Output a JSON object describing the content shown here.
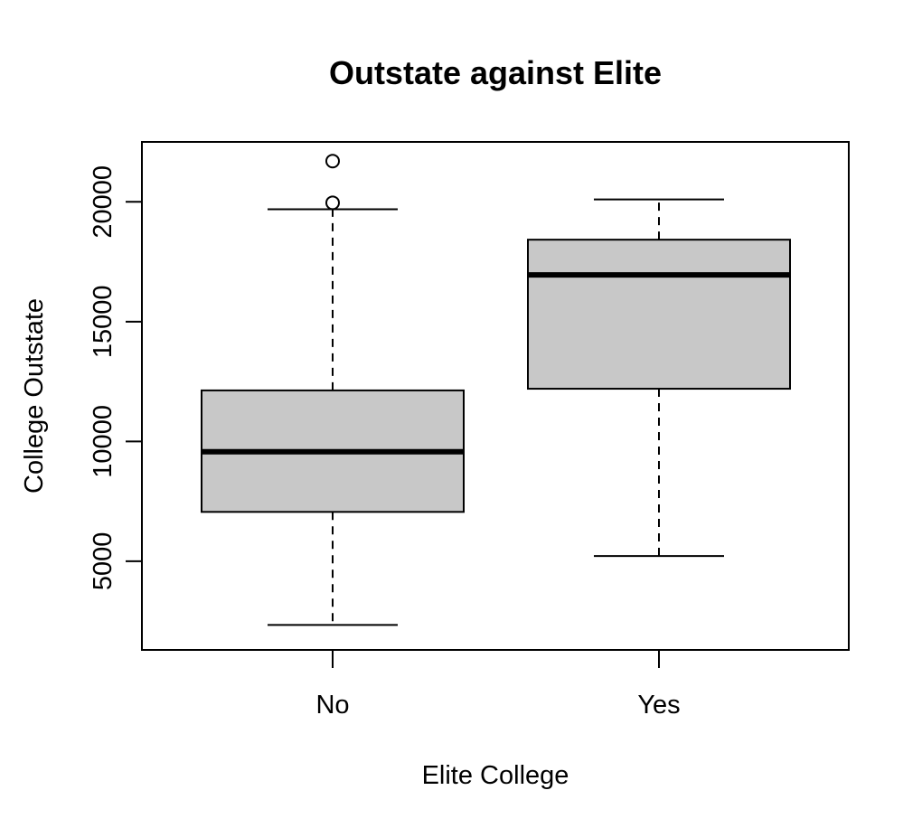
{
  "chart_data": {
    "type": "boxplot",
    "title": "Outstate against Elite",
    "xlabel": "Elite College",
    "ylabel": "College Outstate",
    "categories": [
      "No",
      "Yes"
    ],
    "ylim": [
      1300,
      22500
    ],
    "yticks": [
      5000,
      10000,
      15000,
      20000
    ],
    "grid": false,
    "legend": "none",
    "colors": {
      "box_fill": "#c8c8c8",
      "line": "#000000",
      "background": "#ffffff"
    },
    "boxes": [
      {
        "category": "No",
        "whisker_low": 2340,
        "q1": 7060,
        "median": 9570,
        "q3": 12130,
        "whisker_high": 19690,
        "outliers": [
          19960,
          21700
        ]
      },
      {
        "category": "Yes",
        "whisker_low": 5220,
        "q1": 12200,
        "median": 16950,
        "q3": 18420,
        "whisker_high": 20100,
        "outliers": []
      }
    ]
  }
}
